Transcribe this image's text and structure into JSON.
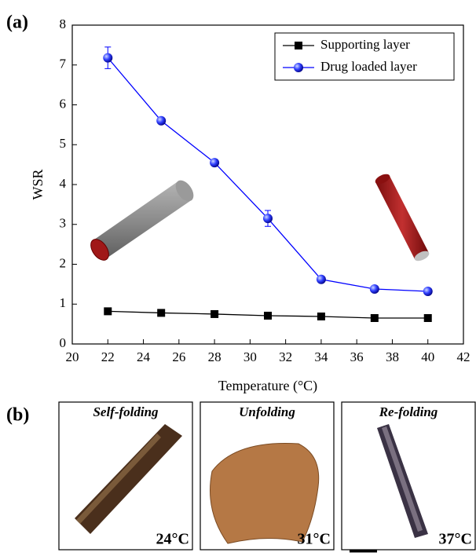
{
  "figure_labels": {
    "a": "(a)",
    "b": "(b)"
  },
  "chart_data": {
    "type": "line",
    "xlabel": "Temperature (°C)",
    "ylabel": "WSR",
    "x": [
      22,
      25,
      28,
      31,
      34,
      37,
      40
    ],
    "series": [
      {
        "name": "Supporting layer",
        "color": "#000000",
        "marker": "square",
        "values": [
          0.82,
          0.78,
          0.75,
          0.71,
          0.69,
          0.65,
          0.65
        ]
      },
      {
        "name": "Drug loaded layer",
        "color": "#0000ff",
        "marker": "circle",
        "values": [
          7.18,
          5.6,
          4.55,
          3.15,
          1.62,
          1.38,
          1.32
        ],
        "errors": [
          0.27,
          0.05,
          0.05,
          0.2,
          0.04,
          0.04,
          0.04
        ]
      }
    ],
    "xlim": [
      20,
      42
    ],
    "xticks": [
      20,
      22,
      24,
      26,
      28,
      30,
      32,
      34,
      36,
      38,
      40,
      42
    ],
    "ylim": [
      0,
      8
    ],
    "yticks": [
      0,
      1,
      2,
      3,
      4,
      5,
      6,
      7,
      8
    ],
    "legend": "upper right"
  },
  "panels": [
    {
      "title": "Self-folding",
      "temperature": "24°C"
    },
    {
      "title": "Unfolding",
      "temperature": "31°C"
    },
    {
      "title": "Re-folding",
      "temperature": "37°C"
    }
  ]
}
